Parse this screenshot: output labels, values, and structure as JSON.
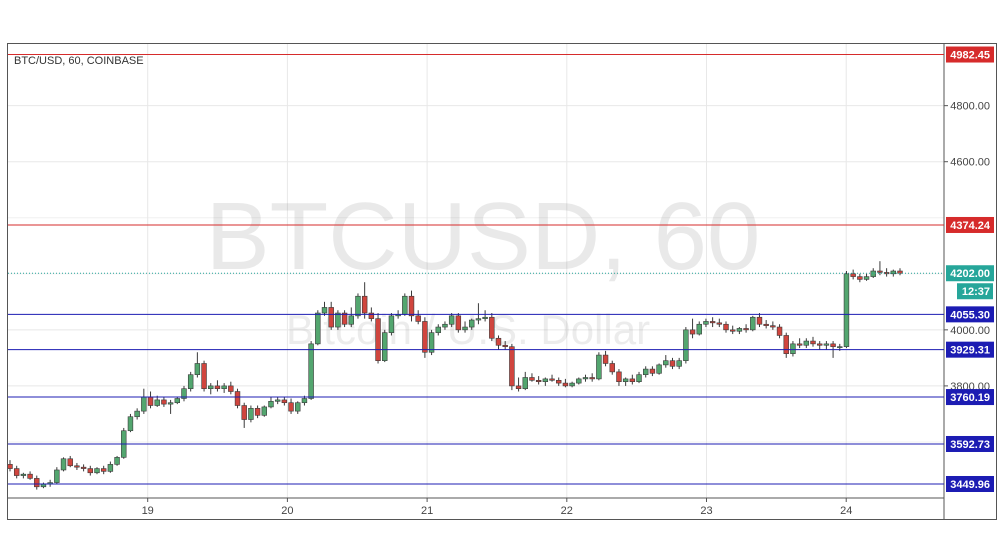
{
  "symbol_label": "BTC/USD, 60, COINBASE",
  "watermark": {
    "ticker": "BTCUSD, 60",
    "name": "Bitcoin / U.S. Dollar"
  },
  "colors": {
    "up": "#53a66f",
    "down": "#d0453e",
    "wick": "#3a3a3a",
    "resistance": "#d62b2b",
    "support": "#1c1cb3",
    "last_price": "#26a69a",
    "countdown_badge": "#26a69a"
  },
  "chart_data": {
    "type": "candlestick",
    "title": "BTC/USD, 60, COINBASE",
    "ylim": [
      3400,
      5020
    ],
    "y_ticks": [
      3800,
      4000,
      4600,
      4800
    ],
    "y_tick_labels": [
      "3800.00",
      "4000.00",
      "4600.00",
      "4800.00"
    ],
    "x_tick_labels": [
      "19",
      "20",
      "21",
      "22",
      "23",
      "24"
    ],
    "x_tick_days": [
      19,
      20,
      21,
      22,
      23,
      24
    ],
    "x_range_days": [
      18,
      24.7
    ],
    "grid": true,
    "levels": [
      {
        "value": 4982.45,
        "label": "4982.45",
        "kind": "resistance"
      },
      {
        "value": 4374.24,
        "label": "4374.24",
        "kind": "resistance"
      },
      {
        "value": 4055.3,
        "label": "4055.30",
        "kind": "support"
      },
      {
        "value": 3929.31,
        "label": "3929.31",
        "kind": "support"
      },
      {
        "value": 3760.19,
        "label": "3760.19",
        "kind": "support"
      },
      {
        "value": 3592.73,
        "label": "3592.73",
        "kind": "support"
      },
      {
        "value": 3449.96,
        "label": "3449.96",
        "kind": "support"
      }
    ],
    "last_price": {
      "value": 4202.0,
      "label": "4202.00",
      "countdown": "12:37"
    },
    "candles": [
      [
        3520,
        3535,
        3495,
        3505
      ],
      [
        3505,
        3515,
        3470,
        3480
      ],
      [
        3480,
        3490,
        3470,
        3485
      ],
      [
        3485,
        3495,
        3465,
        3470
      ],
      [
        3470,
        3480,
        3430,
        3440
      ],
      [
        3440,
        3455,
        3435,
        3450
      ],
      [
        3450,
        3465,
        3440,
        3455
      ],
      [
        3455,
        3510,
        3450,
        3500
      ],
      [
        3500,
        3545,
        3495,
        3540
      ],
      [
        3540,
        3550,
        3510,
        3515
      ],
      [
        3515,
        3525,
        3500,
        3510
      ],
      [
        3510,
        3520,
        3495,
        3505
      ],
      [
        3505,
        3515,
        3480,
        3490
      ],
      [
        3490,
        3510,
        3485,
        3505
      ],
      [
        3505,
        3515,
        3485,
        3495
      ],
      [
        3495,
        3530,
        3490,
        3520
      ],
      [
        3520,
        3550,
        3515,
        3545
      ],
      [
        3545,
        3650,
        3540,
        3640
      ],
      [
        3640,
        3700,
        3635,
        3690
      ],
      [
        3690,
        3720,
        3680,
        3710
      ],
      [
        3710,
        3790,
        3700,
        3760
      ],
      [
        3760,
        3780,
        3720,
        3730
      ],
      [
        3730,
        3765,
        3725,
        3750
      ],
      [
        3750,
        3760,
        3725,
        3735
      ],
      [
        3735,
        3750,
        3700,
        3740
      ],
      [
        3740,
        3760,
        3735,
        3755
      ],
      [
        3755,
        3800,
        3745,
        3790
      ],
      [
        3790,
        3850,
        3780,
        3840
      ],
      [
        3840,
        3920,
        3830,
        3880
      ],
      [
        3880,
        3890,
        3780,
        3790
      ],
      [
        3790,
        3810,
        3770,
        3800
      ],
      [
        3800,
        3820,
        3780,
        3790
      ],
      [
        3790,
        3810,
        3775,
        3800
      ],
      [
        3800,
        3815,
        3770,
        3780
      ],
      [
        3780,
        3790,
        3720,
        3730
      ],
      [
        3730,
        3740,
        3650,
        3680
      ],
      [
        3680,
        3730,
        3670,
        3720
      ],
      [
        3720,
        3730,
        3685,
        3695
      ],
      [
        3695,
        3730,
        3690,
        3725
      ],
      [
        3725,
        3760,
        3720,
        3745
      ],
      [
        3745,
        3760,
        3735,
        3750
      ],
      [
        3750,
        3760,
        3730,
        3740
      ],
      [
        3740,
        3755,
        3700,
        3710
      ],
      [
        3710,
        3745,
        3700,
        3740
      ],
      [
        3740,
        3765,
        3730,
        3755
      ],
      [
        3755,
        3960,
        3750,
        3950
      ],
      [
        3950,
        4070,
        3945,
        4060
      ],
      [
        4060,
        4100,
        4050,
        4080
      ],
      [
        4080,
        4100,
        4000,
        4010
      ],
      [
        4010,
        4070,
        4000,
        4060
      ],
      [
        4060,
        4070,
        4010,
        4020
      ],
      [
        4020,
        4080,
        4010,
        4050
      ],
      [
        4050,
        4130,
        4040,
        4120
      ],
      [
        4120,
        4170,
        4040,
        4060
      ],
      [
        4060,
        4080,
        4030,
        4040
      ],
      [
        4040,
        4060,
        3880,
        3890
      ],
      [
        3890,
        4000,
        3885,
        3990
      ],
      [
        3990,
        4060,
        3980,
        4050
      ],
      [
        4050,
        4070,
        4040,
        4055
      ],
      [
        4055,
        4130,
        4050,
        4120
      ],
      [
        4120,
        4140,
        4030,
        4050
      ],
      [
        4050,
        4070,
        4020,
        4030
      ],
      [
        4030,
        4045,
        3900,
        3920
      ],
      [
        3920,
        4000,
        3910,
        3990
      ],
      [
        3990,
        4020,
        3980,
        4010
      ],
      [
        4010,
        4030,
        4000,
        4020
      ],
      [
        4020,
        4060,
        4010,
        4050
      ],
      [
        4050,
        4060,
        3990,
        4000
      ],
      [
        4000,
        4030,
        3990,
        4010
      ],
      [
        4010,
        4040,
        4000,
        4035
      ],
      [
        4035,
        4095,
        4020,
        4040
      ],
      [
        4040,
        4070,
        4030,
        4045
      ],
      [
        4045,
        4060,
        3960,
        3970
      ],
      [
        3970,
        3980,
        3930,
        3945
      ],
      [
        3945,
        3960,
        3930,
        3940
      ],
      [
        3940,
        3950,
        3785,
        3800
      ],
      [
        3800,
        3830,
        3780,
        3790
      ],
      [
        3790,
        3850,
        3785,
        3830
      ],
      [
        3830,
        3845,
        3815,
        3820
      ],
      [
        3820,
        3835,
        3805,
        3815
      ],
      [
        3815,
        3830,
        3800,
        3825
      ],
      [
        3825,
        3840,
        3815,
        3820
      ],
      [
        3820,
        3830,
        3800,
        3810
      ],
      [
        3810,
        3825,
        3795,
        3800
      ],
      [
        3800,
        3815,
        3795,
        3810
      ],
      [
        3810,
        3830,
        3805,
        3825
      ],
      [
        3825,
        3840,
        3815,
        3830
      ],
      [
        3830,
        3845,
        3815,
        3825
      ],
      [
        3825,
        3920,
        3820,
        3910
      ],
      [
        3910,
        3925,
        3870,
        3880
      ],
      [
        3880,
        3890,
        3840,
        3850
      ],
      [
        3850,
        3860,
        3800,
        3815
      ],
      [
        3815,
        3830,
        3800,
        3825
      ],
      [
        3825,
        3840,
        3805,
        3815
      ],
      [
        3815,
        3850,
        3810,
        3840
      ],
      [
        3840,
        3870,
        3830,
        3860
      ],
      [
        3860,
        3870,
        3835,
        3845
      ],
      [
        3845,
        3880,
        3840,
        3875
      ],
      [
        3875,
        3910,
        3865,
        3890
      ],
      [
        3890,
        3900,
        3860,
        3870
      ],
      [
        3870,
        3900,
        3860,
        3890
      ],
      [
        3890,
        4010,
        3880,
        4000
      ],
      [
        4000,
        4040,
        3970,
        3985
      ],
      [
        3985,
        4030,
        3980,
        4020
      ],
      [
        4020,
        4040,
        4010,
        4030
      ],
      [
        4030,
        4045,
        4010,
        4025
      ],
      [
        4025,
        4040,
        4010,
        4020
      ],
      [
        4020,
        4030,
        3990,
        4000
      ],
      [
        4000,
        4015,
        3985,
        3995
      ],
      [
        3995,
        4010,
        3985,
        4005
      ],
      [
        4005,
        4020,
        3990,
        4000
      ],
      [
        4000,
        4050,
        3995,
        4045
      ],
      [
        4045,
        4060,
        4010,
        4020
      ],
      [
        4020,
        4035,
        4005,
        4015
      ],
      [
        4015,
        4030,
        4000,
        4010
      ],
      [
        4010,
        4020,
        3970,
        3980
      ],
      [
        3980,
        3990,
        3900,
        3915
      ],
      [
        3915,
        3960,
        3905,
        3950
      ],
      [
        3950,
        3970,
        3935,
        3945
      ],
      [
        3945,
        3970,
        3935,
        3960
      ],
      [
        3960,
        3975,
        3940,
        3950
      ],
      [
        3950,
        3960,
        3930,
        3945
      ],
      [
        3945,
        3960,
        3930,
        3950
      ],
      [
        3950,
        3960,
        3900,
        3940
      ],
      [
        3940,
        3950,
        3925,
        3940
      ],
      [
        3940,
        4210,
        3935,
        4200
      ],
      [
        4200,
        4215,
        4180,
        4190
      ],
      [
        4190,
        4200,
        4170,
        4180
      ],
      [
        4180,
        4200,
        4175,
        4190
      ],
      [
        4190,
        4220,
        4185,
        4210
      ],
      [
        4210,
        4245,
        4195,
        4205
      ],
      [
        4205,
        4220,
        4190,
        4200
      ],
      [
        4200,
        4215,
        4190,
        4210
      ],
      [
        4210,
        4220,
        4195,
        4202
      ]
    ]
  }
}
